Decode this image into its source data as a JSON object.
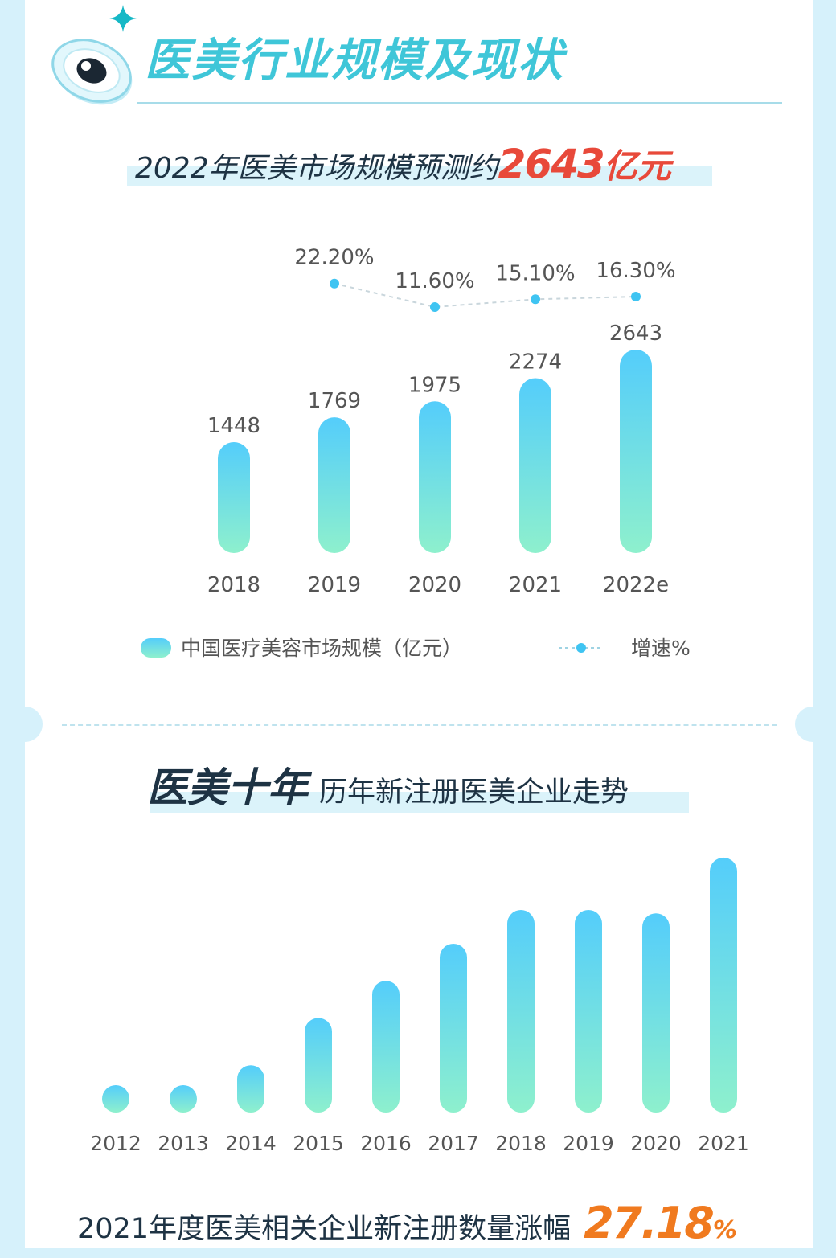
{
  "section_title": "医美行业规模及现状",
  "headline1": {
    "text": "2022年医美市场规模预测约",
    "value": "2643",
    "unit": "亿元"
  },
  "headline2": {
    "bold": "医美十年",
    "text": "历年新注册医美企业走势"
  },
  "footer": {
    "text": "2021年度医美相关企业新注册数量涨幅",
    "value": "27.18",
    "unit": "%"
  },
  "colors": {
    "bar_top": "#54cdfb",
    "bar_bottom": "#8ef0cd",
    "accent_red": "#e8493a",
    "accent_orange": "#f07a1f",
    "title_cyan": "#3fc6d8"
  },
  "chart_data": [
    {
      "type": "bar",
      "categories": [
        "2018",
        "2019",
        "2020",
        "2021",
        "2022e"
      ],
      "series": [
        {
          "name": "中国医疗美容市场规模（亿元）",
          "type": "bar",
          "values": [
            1448,
            1769,
            1975,
            2274,
            2643
          ]
        },
        {
          "name": "增速%",
          "type": "line",
          "values": [
            null,
            22.2,
            11.6,
            15.1,
            16.3
          ],
          "labels": [
            "",
            "22.20%",
            "11.60%",
            "15.10%",
            "16.30%"
          ]
        }
      ],
      "legend": "bottom"
    },
    {
      "type": "bar",
      "categories": [
        "2012",
        "2013",
        "2014",
        "2015",
        "2016",
        "2017",
        "2018",
        "2019",
        "2020",
        "2021"
      ],
      "values": [
        1.0,
        1.3,
        2.8,
        5.6,
        7.8,
        10.0,
        12.0,
        12.0,
        11.8,
        15.1
      ],
      "legend": "none"
    }
  ]
}
